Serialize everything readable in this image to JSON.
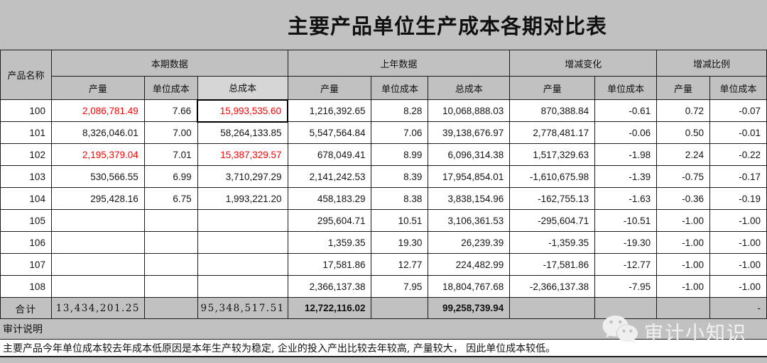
{
  "page": {
    "title": "主要产品单位生产成本各期对比表",
    "colors": {
      "background": "#c1c1c1",
      "cell_bg": "#ffffff",
      "accent_red": "#ff0000",
      "border": "#1c1c1c"
    }
  },
  "table": {
    "corner_header": "产品名称",
    "groups": [
      {
        "label": "本期数据",
        "span": 3
      },
      {
        "label": "上年数据",
        "span": 3
      },
      {
        "label": "增减变化",
        "span": 2
      },
      {
        "label": "增减比例",
        "span": 2
      }
    ],
    "sub_headers": [
      "产量",
      "单位成本",
      "总成本",
      "产量",
      "单位成本",
      "总成本",
      "产量",
      "单位成本",
      "产量",
      "单位成本"
    ],
    "rows": [
      [
        "100",
        "2,086,781.49",
        "7.66",
        "15,993,535.60",
        "1,216,392.65",
        "8.28",
        "10,068,888.03",
        "870,388.84",
        "-0.61",
        "0.72",
        "-0.07"
      ],
      [
        "101",
        "8,326,046.01",
        "7.00",
        "58,264,133.85",
        "5,547,564.84",
        "7.06",
        "39,138,676.97",
        "2,778,481.17",
        "-0.06",
        "0.50",
        "-0.01"
      ],
      [
        "102",
        "2,195,379.04",
        "7.01",
        "15,387,329.57",
        "678,049.41",
        "8.99",
        "6,096,314.38",
        "1,517,329.63",
        "-1.98",
        "2.24",
        "-0.22"
      ],
      [
        "103",
        "530,566.55",
        "6.99",
        "3,710,297.29",
        "2,141,242.53",
        "8.39",
        "17,954,854.01",
        "-1,610,675.98",
        "-1.39",
        "-0.75",
        "-0.17"
      ],
      [
        "104",
        "295,428.16",
        "6.75",
        "1,993,221.20",
        "458,183.29",
        "8.38",
        "3,838,154.96",
        "-162,755.13",
        "-1.63",
        "-0.36",
        "-0.19"
      ],
      [
        "105",
        "",
        "",
        "",
        "295,604.71",
        "10.51",
        "3,106,361.53",
        "-295,604.71",
        "-10.51",
        "-1.00",
        "-1.00"
      ],
      [
        "106",
        "",
        "",
        "",
        "1,359.35",
        "19.30",
        "26,239.39",
        "-1,359.35",
        "-19.30",
        "-1.00",
        "-1.00"
      ],
      [
        "107",
        "",
        "",
        "",
        "17,581.86",
        "12.77",
        "224,482.99",
        "-17,581.86",
        "-12.77",
        "-1.00",
        "-1.00"
      ],
      [
        "108",
        "",
        "",
        "",
        "2,366,137.38",
        "7.95",
        "18,804,767.68",
        "-2,366,137.38",
        "-7.95",
        "-1.00",
        "-1.00"
      ]
    ],
    "red_cells": [
      [
        0,
        1
      ],
      [
        0,
        3
      ],
      [
        2,
        1
      ],
      [
        2,
        3
      ]
    ],
    "selected_cell": [
      0,
      3
    ],
    "total_row": [
      "合计",
      "13,434,201.25",
      "",
      "95,348,517.51",
      "12,722,116.02",
      "",
      "99,258,739.94",
      "",
      "",
      "",
      "-"
    ],
    "audit_label": "审计说明",
    "note": "主要产品今年单位成本较去年成本低原因是本年生产较为稳定, 企业的投入产出比较去年较高, 产量较大， 因此单位成本较低。"
  },
  "watermark": {
    "label": "审计小知识",
    "icon": "wechat-icon"
  }
}
